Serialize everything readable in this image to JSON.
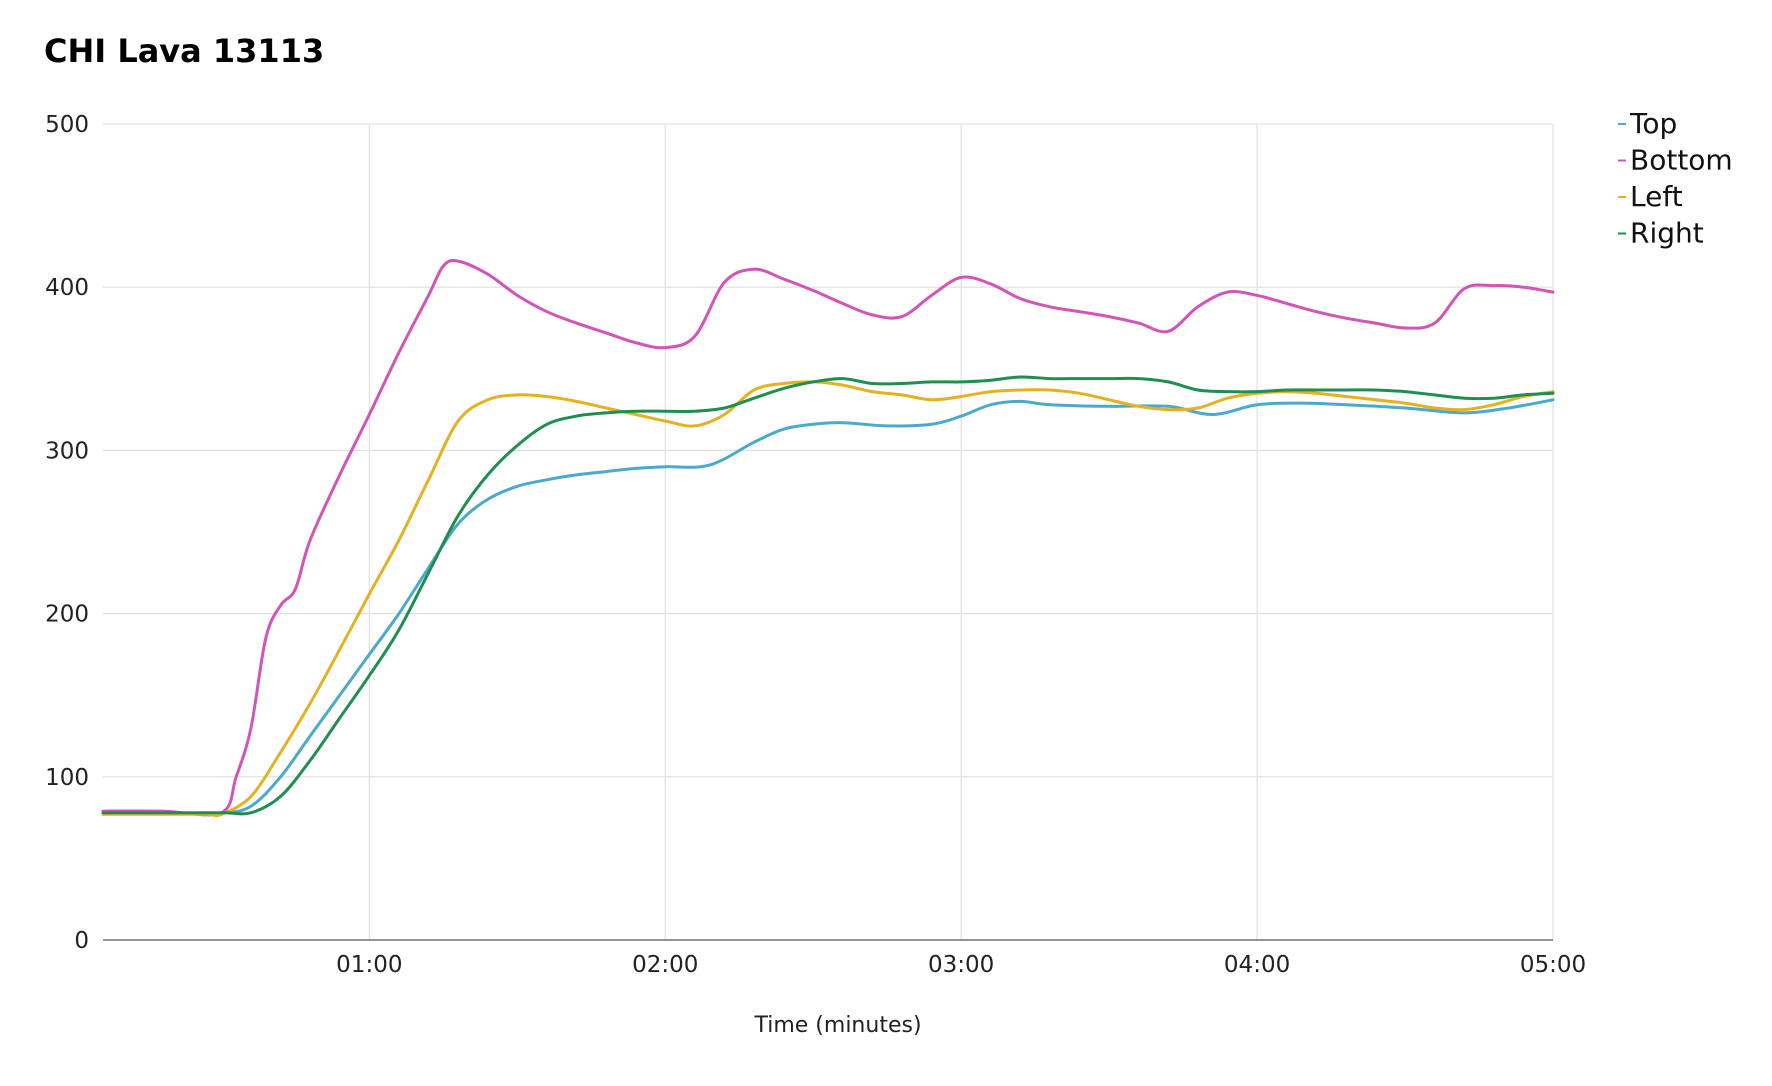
{
  "chart_data": {
    "type": "line",
    "title": "CHI Lava 13113",
    "xlabel": "Time (minutes)",
    "ylabel": "",
    "xlim": [
      0.1,
      5.0
    ],
    "ylim": [
      0,
      500
    ],
    "x_ticks": [
      1,
      2,
      3,
      4,
      5
    ],
    "x_tick_labels": [
      "01:00",
      "02:00",
      "03:00",
      "04:00",
      "05:00"
    ],
    "y_ticks": [
      0,
      100,
      200,
      300,
      400,
      500
    ],
    "y_tick_labels": [
      "0",
      "100",
      "200",
      "300",
      "400",
      "500"
    ],
    "grid": true,
    "legend_position": "top-right",
    "series": [
      {
        "name": "Top",
        "color": "#4aa9cf",
        "points": [
          [
            0.1,
            78
          ],
          [
            0.3,
            78
          ],
          [
            0.5,
            78
          ],
          [
            0.6,
            82
          ],
          [
            0.7,
            100
          ],
          [
            0.8,
            125
          ],
          [
            0.9,
            150
          ],
          [
            1.0,
            175
          ],
          [
            1.1,
            200
          ],
          [
            1.2,
            228
          ],
          [
            1.3,
            255
          ],
          [
            1.4,
            270
          ],
          [
            1.5,
            278
          ],
          [
            1.6,
            282
          ],
          [
            1.7,
            285
          ],
          [
            1.8,
            287
          ],
          [
            1.9,
            289
          ],
          [
            2.0,
            290
          ],
          [
            2.15,
            291
          ],
          [
            2.3,
            305
          ],
          [
            2.4,
            313
          ],
          [
            2.5,
            316
          ],
          [
            2.6,
            317
          ],
          [
            2.75,
            315
          ],
          [
            2.9,
            316
          ],
          [
            3.0,
            321
          ],
          [
            3.1,
            328
          ],
          [
            3.2,
            330
          ],
          [
            3.3,
            328
          ],
          [
            3.5,
            327
          ],
          [
            3.7,
            327
          ],
          [
            3.85,
            322
          ],
          [
            4.0,
            328
          ],
          [
            4.15,
            329
          ],
          [
            4.3,
            328
          ],
          [
            4.5,
            326
          ],
          [
            4.7,
            323
          ],
          [
            4.85,
            326
          ],
          [
            5.0,
            331
          ]
        ]
      },
      {
        "name": "Bottom",
        "color": "#d354b8",
        "points": [
          [
            0.1,
            79
          ],
          [
            0.3,
            79
          ],
          [
            0.5,
            78
          ],
          [
            0.55,
            100
          ],
          [
            0.6,
            130
          ],
          [
            0.65,
            185
          ],
          [
            0.7,
            205
          ],
          [
            0.75,
            215
          ],
          [
            0.8,
            245
          ],
          [
            0.9,
            285
          ],
          [
            1.0,
            322
          ],
          [
            1.1,
            360
          ],
          [
            1.2,
            395
          ],
          [
            1.25,
            413
          ],
          [
            1.3,
            416
          ],
          [
            1.4,
            408
          ],
          [
            1.5,
            395
          ],
          [
            1.6,
            385
          ],
          [
            1.7,
            378
          ],
          [
            1.8,
            372
          ],
          [
            1.9,
            366
          ],
          [
            2.0,
            363
          ],
          [
            2.1,
            370
          ],
          [
            2.2,
            403
          ],
          [
            2.3,
            411
          ],
          [
            2.4,
            405
          ],
          [
            2.5,
            398
          ],
          [
            2.6,
            390
          ],
          [
            2.7,
            383
          ],
          [
            2.8,
            382
          ],
          [
            2.9,
            395
          ],
          [
            3.0,
            406
          ],
          [
            3.1,
            402
          ],
          [
            3.2,
            393
          ],
          [
            3.3,
            388
          ],
          [
            3.4,
            385
          ],
          [
            3.5,
            382
          ],
          [
            3.6,
            378
          ],
          [
            3.7,
            373
          ],
          [
            3.8,
            388
          ],
          [
            3.9,
            397
          ],
          [
            4.0,
            395
          ],
          [
            4.1,
            390
          ],
          [
            4.2,
            385
          ],
          [
            4.3,
            381
          ],
          [
            4.4,
            378
          ],
          [
            4.5,
            375
          ],
          [
            4.6,
            378
          ],
          [
            4.7,
            399
          ],
          [
            4.8,
            401
          ],
          [
            4.9,
            400
          ],
          [
            5.0,
            397
          ]
        ]
      },
      {
        "name": "Left",
        "color": "#e6b020",
        "points": [
          [
            0.1,
            77
          ],
          [
            0.3,
            77
          ],
          [
            0.45,
            77
          ],
          [
            0.5,
            77
          ],
          [
            0.6,
            88
          ],
          [
            0.7,
            115
          ],
          [
            0.8,
            145
          ],
          [
            0.9,
            178
          ],
          [
            1.0,
            212
          ],
          [
            1.1,
            245
          ],
          [
            1.2,
            282
          ],
          [
            1.3,
            318
          ],
          [
            1.4,
            331
          ],
          [
            1.5,
            334
          ],
          [
            1.6,
            333
          ],
          [
            1.7,
            330
          ],
          [
            1.8,
            326
          ],
          [
            1.9,
            322
          ],
          [
            2.0,
            318
          ],
          [
            2.1,
            315
          ],
          [
            2.2,
            322
          ],
          [
            2.3,
            337
          ],
          [
            2.4,
            341
          ],
          [
            2.5,
            342
          ],
          [
            2.6,
            340
          ],
          [
            2.7,
            336
          ],
          [
            2.8,
            334
          ],
          [
            2.9,
            331
          ],
          [
            3.0,
            333
          ],
          [
            3.1,
            336
          ],
          [
            3.2,
            337
          ],
          [
            3.3,
            337
          ],
          [
            3.4,
            335
          ],
          [
            3.5,
            331
          ],
          [
            3.6,
            327
          ],
          [
            3.7,
            325
          ],
          [
            3.8,
            326
          ],
          [
            3.9,
            332
          ],
          [
            4.0,
            335
          ],
          [
            4.1,
            336
          ],
          [
            4.2,
            335
          ],
          [
            4.3,
            333
          ],
          [
            4.4,
            331
          ],
          [
            4.5,
            329
          ],
          [
            4.6,
            326
          ],
          [
            4.7,
            325
          ],
          [
            4.8,
            328
          ],
          [
            4.9,
            333
          ],
          [
            5.0,
            336
          ]
        ]
      },
      {
        "name": "Right",
        "color": "#1e8f50",
        "points": [
          [
            0.1,
            78
          ],
          [
            0.3,
            78
          ],
          [
            0.5,
            78
          ],
          [
            0.6,
            78
          ],
          [
            0.7,
            88
          ],
          [
            0.8,
            110
          ],
          [
            0.9,
            136
          ],
          [
            1.0,
            162
          ],
          [
            1.1,
            190
          ],
          [
            1.2,
            225
          ],
          [
            1.3,
            260
          ],
          [
            1.4,
            285
          ],
          [
            1.5,
            303
          ],
          [
            1.6,
            316
          ],
          [
            1.7,
            321
          ],
          [
            1.8,
            323
          ],
          [
            1.9,
            324
          ],
          [
            2.0,
            324
          ],
          [
            2.1,
            324
          ],
          [
            2.2,
            326
          ],
          [
            2.3,
            332
          ],
          [
            2.4,
            338
          ],
          [
            2.5,
            342
          ],
          [
            2.6,
            344
          ],
          [
            2.7,
            341
          ],
          [
            2.8,
            341
          ],
          [
            2.9,
            342
          ],
          [
            3.0,
            342
          ],
          [
            3.1,
            343
          ],
          [
            3.2,
            345
          ],
          [
            3.3,
            344
          ],
          [
            3.4,
            344
          ],
          [
            3.5,
            344
          ],
          [
            3.6,
            344
          ],
          [
            3.7,
            342
          ],
          [
            3.8,
            337
          ],
          [
            3.9,
            336
          ],
          [
            4.0,
            336
          ],
          [
            4.1,
            337
          ],
          [
            4.2,
            337
          ],
          [
            4.3,
            337
          ],
          [
            4.4,
            337
          ],
          [
            4.5,
            336
          ],
          [
            4.6,
            334
          ],
          [
            4.7,
            332
          ],
          [
            4.8,
            332
          ],
          [
            4.9,
            334
          ],
          [
            5.0,
            335
          ]
        ]
      }
    ]
  }
}
